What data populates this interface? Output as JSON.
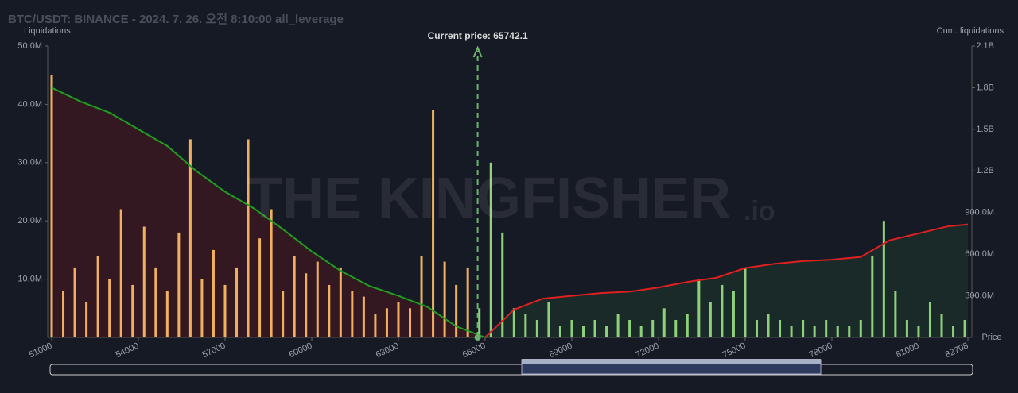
{
  "chart_data": {
    "type": "bar",
    "title": "BTC/USDT: BINANCE - 2024. 7. 26. 오전 8:10:00 all_leverage",
    "y_label": "Liquidations",
    "y2_label": "Cum. liquidations",
    "x_label": "Price",
    "watermark": "THE KINGFISHER",
    "watermark_suffix": ".io",
    "current_price": 65742.1,
    "current_price_label": "Current price: 65742.1",
    "xlim": [
      51000,
      82708
    ],
    "xticks": [
      51000,
      54000,
      57000,
      60000,
      63000,
      66000,
      69000,
      72000,
      75000,
      78000,
      81000,
      82708
    ],
    "ylim": [
      0,
      50000000
    ],
    "yticks": [
      {
        "value": 10000000,
        "label": "10.0M"
      },
      {
        "value": 20000000,
        "label": "20.0M"
      },
      {
        "value": 30000000,
        "label": "30.0M"
      },
      {
        "value": 40000000,
        "label": "40.0M"
      },
      {
        "value": 50000000,
        "label": "50.0M"
      }
    ],
    "y2lim": [
      0,
      2100000000
    ],
    "y2ticks": [
      {
        "value": 300000000,
        "label": "300.0M"
      },
      {
        "value": 600000000,
        "label": "600.0M"
      },
      {
        "value": 900000000,
        "label": "900.0M"
      },
      {
        "value": 1200000000,
        "label": "1.2B"
      },
      {
        "value": 1500000000,
        "label": "1.5B"
      },
      {
        "value": 1800000000,
        "label": "1.8B"
      },
      {
        "value": 2100000000,
        "label": "2.1B"
      }
    ],
    "color_below": "#f0b060",
    "color_above": "#8fd17a",
    "bars": {
      "x": [
        51000,
        51400,
        51800,
        52200,
        52600,
        53000,
        53400,
        53800,
        54200,
        54600,
        55000,
        55400,
        55800,
        56200,
        56600,
        57000,
        57400,
        57800,
        58200,
        58600,
        59000,
        59400,
        59800,
        60200,
        60600,
        61000,
        61400,
        61800,
        62200,
        62600,
        63000,
        63400,
        63800,
        64200,
        64600,
        65000,
        65400,
        65800,
        66200,
        66600,
        67000,
        67400,
        67800,
        68200,
        68600,
        69000,
        69400,
        69800,
        70200,
        70600,
        71000,
        71400,
        71800,
        72200,
        72600,
        73000,
        73400,
        73800,
        74200,
        74600,
        75000,
        75400,
        75800,
        76200,
        76600,
        77000,
        77400,
        77800,
        78200,
        78600,
        79000,
        79400,
        79800,
        80200,
        80600,
        81000,
        81400,
        81800,
        82200,
        82600
      ],
      "values": [
        45000000,
        8000000,
        12000000,
        6000000,
        14000000,
        10000000,
        22000000,
        9000000,
        19000000,
        12000000,
        8000000,
        18000000,
        34000000,
        10000000,
        15000000,
        9000000,
        12000000,
        34000000,
        17000000,
        22000000,
        8000000,
        14000000,
        11000000,
        13000000,
        9000000,
        12000000,
        8000000,
        7000000,
        4000000,
        5000000,
        6000000,
        5000000,
        14000000,
        39000000,
        13000000,
        9000000,
        12000000,
        5000000,
        30000000,
        18000000,
        5000000,
        4000000,
        3000000,
        6000000,
        2000000,
        3000000,
        2000000,
        3000000,
        2000000,
        4000000,
        3000000,
        2000000,
        3000000,
        5000000,
        3000000,
        4000000,
        10000000,
        6000000,
        9000000,
        8000000,
        12000000,
        3000000,
        4000000,
        3000000,
        2000000,
        3000000,
        2000000,
        3000000,
        2000000,
        2000000,
        3000000,
        14000000,
        20000000,
        8000000,
        3000000,
        2000000,
        6000000,
        4000000,
        2000000,
        3000000
      ]
    },
    "lines": [
      {
        "color": "#1f9e1f",
        "fill": "rgba(120,20,30,0.3)",
        "axis": "y2",
        "x": [
          51000,
          52000,
          53000,
          54000,
          55000,
          56000,
          57000,
          58000,
          59000,
          60000,
          61000,
          62000,
          63000,
          64000,
          65000,
          66000
        ],
        "values": [
          1800000000,
          1700000000,
          1620000000,
          1500000000,
          1380000000,
          1200000000,
          1050000000,
          930000000,
          780000000,
          620000000,
          480000000,
          370000000,
          300000000,
          220000000,
          80000000,
          0
        ]
      },
      {
        "color": "#e02020",
        "fill": "rgba(40,90,50,0.25)",
        "axis": "y2",
        "x": [
          66000,
          67000,
          68000,
          69000,
          70000,
          71000,
          72000,
          73000,
          74000,
          75000,
          76000,
          77000,
          78000,
          79000,
          80000,
          81000,
          82000,
          82708
        ],
        "values": [
          0,
          200000000,
          280000000,
          300000000,
          320000000,
          330000000,
          360000000,
          400000000,
          430000000,
          500000000,
          530000000,
          550000000,
          560000000,
          580000000,
          700000000,
          750000000,
          800000000,
          815000000
        ]
      }
    ]
  }
}
